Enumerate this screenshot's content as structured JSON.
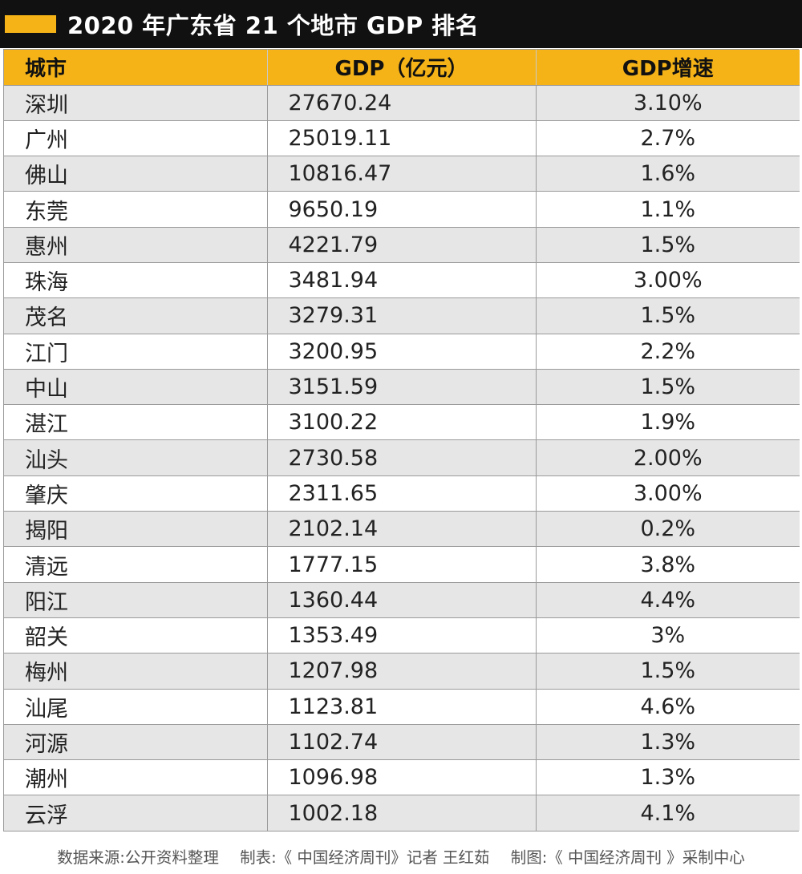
{
  "chart_data": {
    "type": "table",
    "title": "2020 年广东省 21 个地市 GDP 排名",
    "columns": [
      "城市",
      "GDP（亿元）",
      "GDP增速"
    ],
    "rows": [
      {
        "city": "深圳",
        "gdp": "27670.24",
        "growth": "3.10%"
      },
      {
        "city": "广州",
        "gdp": "25019.11",
        "growth": "2.7%"
      },
      {
        "city": "佛山",
        "gdp": "10816.47",
        "growth": "1.6%"
      },
      {
        "city": "东莞",
        "gdp": "9650.19",
        "growth": "1.1%"
      },
      {
        "city": "惠州",
        "gdp": "4221.79",
        "growth": "1.5%"
      },
      {
        "city": "珠海",
        "gdp": "3481.94",
        "growth": "3.00%"
      },
      {
        "city": "茂名",
        "gdp": "3279.31",
        "growth": "1.5%"
      },
      {
        "city": "江门",
        "gdp": "3200.95",
        "growth": "2.2%"
      },
      {
        "city": "中山",
        "gdp": "3151.59",
        "growth": "1.5%"
      },
      {
        "city": "湛江",
        "gdp": "3100.22",
        "growth": "1.9%"
      },
      {
        "city": "汕头",
        "gdp": "2730.58",
        "growth": "2.00%"
      },
      {
        "city": "肇庆",
        "gdp": "2311.65",
        "growth": "3.00%"
      },
      {
        "city": "揭阳",
        "gdp": "2102.14",
        "growth": "0.2%"
      },
      {
        "city": "清远",
        "gdp": "1777.15",
        "growth": "3.8%"
      },
      {
        "city": "阳江",
        "gdp": "1360.44",
        "growth": "4.4%"
      },
      {
        "city": "韶关",
        "gdp": "1353.49",
        "growth": "3%"
      },
      {
        "city": "梅州",
        "gdp": "1207.98",
        "growth": "1.5%"
      },
      {
        "city": "汕尾",
        "gdp": "1123.81",
        "growth": "4.6%"
      },
      {
        "city": "河源",
        "gdp": "1102.74",
        "growth": "1.3%"
      },
      {
        "city": "潮州",
        "gdp": "1096.98",
        "growth": "1.3%"
      },
      {
        "city": "云浮",
        "gdp": "1002.18",
        "growth": "4.1%"
      }
    ]
  },
  "footer": {
    "source": "数据来源:公开资料整理",
    "table_by": "制表:《 中国经济周刊》记者 王红茹",
    "chart_by": "制图:《 中国经济周刊 》采制中心"
  },
  "colors": {
    "title_bg": "#111111",
    "accent": "#f5b318",
    "header_bg": "#f5b318",
    "stripe": "#e6e6e6"
  }
}
